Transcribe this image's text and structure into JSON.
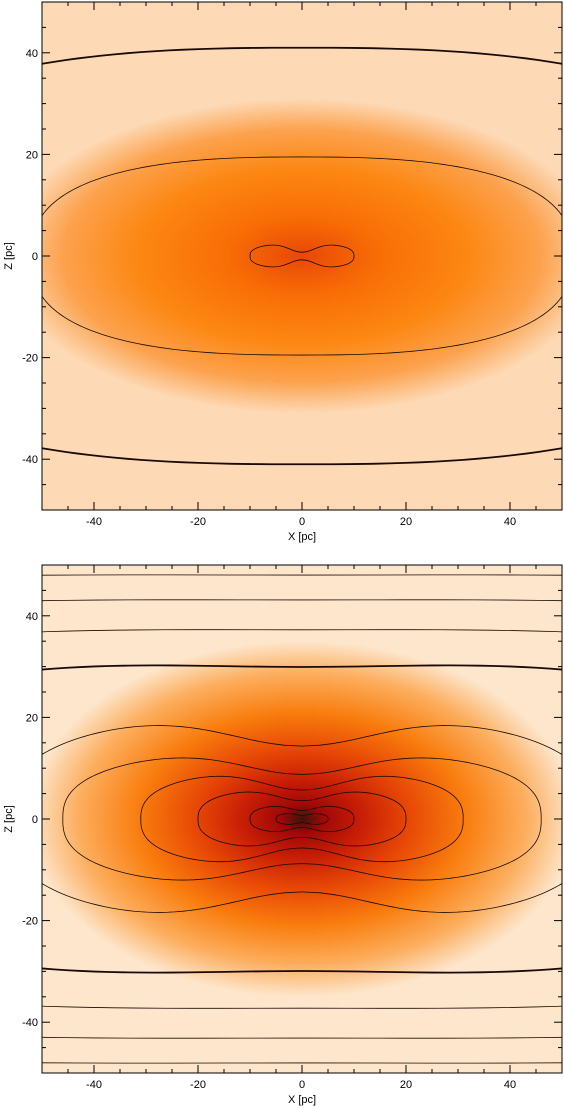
{
  "chart_data": [
    {
      "type": "heatmap",
      "title": "",
      "xlabel": "X [pc]",
      "ylabel": "Z [pc]",
      "xlim": [
        -50,
        50
      ],
      "ylim": [
        -50,
        50
      ],
      "xticks": [
        -40,
        -20,
        0,
        20,
        40
      ],
      "yticks": [
        -40,
        -20,
        0,
        20,
        40
      ],
      "grid": false,
      "colormap": [
        "#fdd9b5",
        "#fca24e",
        "#fc8712",
        "#f86d06",
        "#e84806"
      ],
      "contour_semi_axes": [
        {
          "a": 10,
          "b": 2.5,
          "pinch": 0.7,
          "bold": false
        },
        {
          "a": 52,
          "b": 19.5,
          "pinch": 0.0,
          "bold": false
        },
        {
          "a": 95,
          "b": 41,
          "pinch": 0.0,
          "bold": true
        },
        {
          "a": 130,
          "b": 57,
          "pinch": 0.0,
          "bold": false
        }
      ]
    },
    {
      "type": "heatmap",
      "title": "",
      "xlabel": "X [pc]",
      "ylabel": "Z [pc]",
      "xlim": [
        -50,
        50
      ],
      "ylim": [
        -50,
        50
      ],
      "xticks": [
        -40,
        -20,
        0,
        20,
        40
      ],
      "yticks": [
        -40,
        -20,
        0,
        20,
        40
      ],
      "grid": false,
      "colormap": [
        "#fde6cc",
        "#fcae5e",
        "#f97d0e",
        "#e84a06",
        "#c81e06",
        "#a00808",
        "#3a140a"
      ],
      "contour_semi_axes": [
        {
          "a": 5,
          "b": 1.2,
          "pinch": 0.4,
          "bold": false
        },
        {
          "a": 10,
          "b": 2.8,
          "pinch": 0.4,
          "bold": false
        },
        {
          "a": 20,
          "b": 6,
          "pinch": 0.4,
          "bold": false
        },
        {
          "a": 31,
          "b": 9.5,
          "pinch": 0.4,
          "bold": false
        },
        {
          "a": 46,
          "b": 13.5,
          "pinch": 0.35,
          "bold": false
        },
        {
          "a": 57,
          "b": 20.5,
          "pinch": 0.3,
          "bold": false
        },
        {
          "a": 105,
          "b": 31.5,
          "pinch": 0.05,
          "bold": true
        },
        {
          "a": 150,
          "b": 38,
          "pinch": 0.02,
          "bold": false
        },
        {
          "a": 190,
          "b": 44,
          "pinch": 0.02,
          "bold": false
        },
        {
          "a": 240,
          "b": 49,
          "pinch": 0.02,
          "bold": false
        }
      ]
    }
  ]
}
